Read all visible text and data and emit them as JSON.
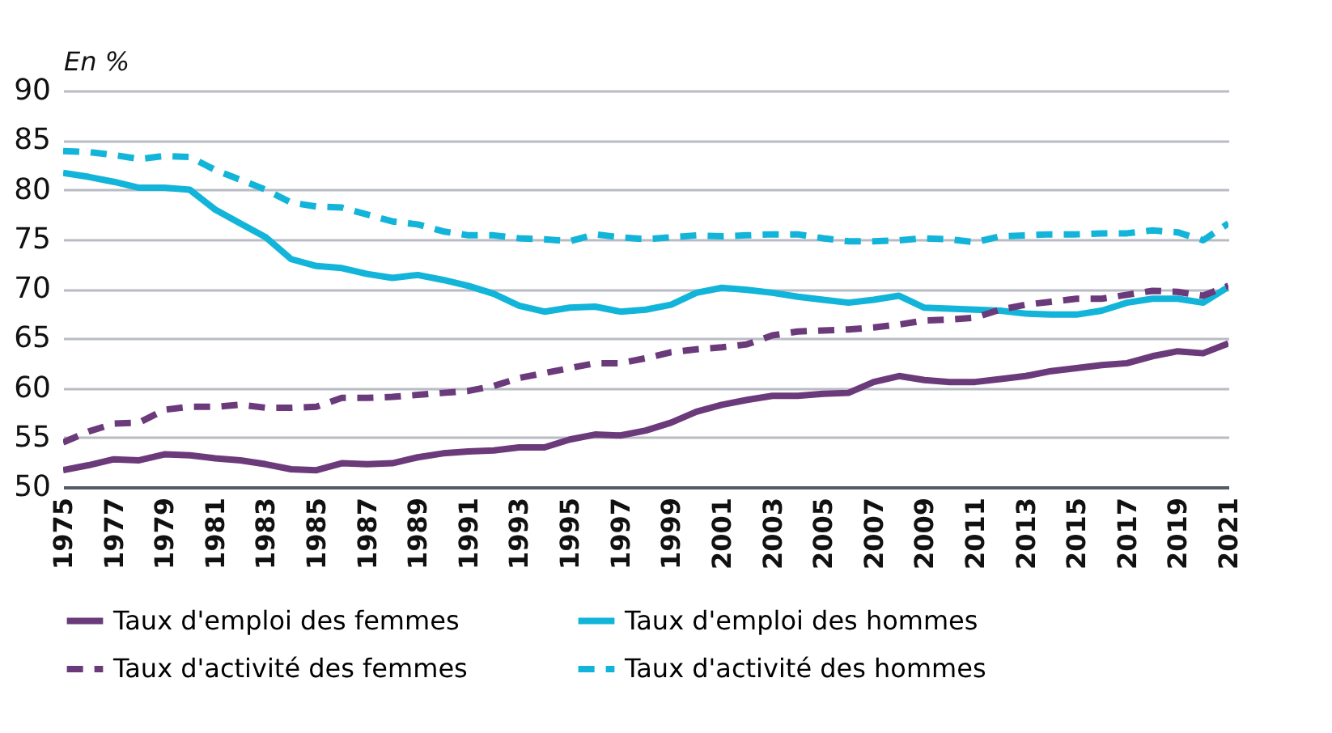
{
  "chart_data": {
    "type": "line",
    "ylabel": "En %",
    "x": [
      1975,
      1976,
      1977,
      1978,
      1979,
      1980,
      1981,
      1982,
      1983,
      1984,
      1985,
      1986,
      1987,
      1988,
      1989,
      1990,
      1991,
      1992,
      1993,
      1994,
      1995,
      1996,
      1997,
      1998,
      1999,
      2000,
      2001,
      2002,
      2003,
      2004,
      2005,
      2006,
      2007,
      2008,
      2009,
      2010,
      2011,
      2012,
      2013,
      2014,
      2015,
      2016,
      2017,
      2018,
      2019,
      2020,
      2021
    ],
    "xlim": [
      1975,
      2021
    ],
    "xticks": [
      1975,
      1977,
      1979,
      1981,
      1983,
      1985,
      1987,
      1989,
      1991,
      1993,
      1995,
      1997,
      1999,
      2001,
      2003,
      2005,
      2007,
      2009,
      2011,
      2013,
      2015,
      2017,
      2019,
      2021
    ],
    "ylim": [
      50,
      90
    ],
    "yticks": [
      50,
      55,
      60,
      65,
      70,
      75,
      80,
      85,
      90
    ],
    "grid": "y",
    "legend": "bottom",
    "marker": "none",
    "series": [
      {
        "name": "Taux d'emploi des femmes",
        "color": "#6b3a7a",
        "line_style": "solid",
        "values": [
          51.7,
          52.2,
          52.8,
          52.7,
          53.3,
          53.2,
          52.9,
          52.7,
          52.3,
          51.8,
          51.7,
          52.4,
          52.3,
          52.4,
          53.0,
          53.4,
          53.6,
          53.7,
          54.0,
          54.0,
          54.8,
          55.3,
          55.2,
          55.7,
          56.5,
          57.6,
          58.3,
          58.8,
          59.2,
          59.2,
          59.4,
          59.5,
          60.6,
          61.2,
          60.8,
          60.6,
          60.6,
          60.9,
          61.2,
          61.7,
          62.0,
          62.3,
          62.5,
          63.2,
          63.7,
          63.5,
          64.5
        ]
      },
      {
        "name": "Taux d'emploi des hommes",
        "color": "#12b5d9",
        "line_style": "solid",
        "values": [
          81.7,
          81.3,
          80.8,
          80.2,
          80.2,
          80.0,
          78.0,
          76.6,
          75.2,
          73.0,
          72.3,
          72.1,
          71.5,
          71.1,
          71.4,
          70.9,
          70.3,
          69.5,
          68.3,
          67.7,
          68.1,
          68.2,
          67.7,
          67.9,
          68.4,
          69.6,
          70.1,
          69.9,
          69.6,
          69.2,
          68.9,
          68.6,
          68.9,
          69.3,
          68.1,
          68.0,
          67.9,
          67.8,
          67.5,
          67.4,
          67.4,
          67.8,
          68.6,
          69.0,
          69.0,
          68.6,
          70.2
        ]
      },
      {
        "name": "Taux d'activité des femmes",
        "color": "#6b3a7a",
        "line_style": "dashed",
        "values": [
          54.5,
          55.6,
          56.4,
          56.5,
          57.8,
          58.1,
          58.1,
          58.3,
          58.0,
          58.0,
          58.1,
          59.0,
          59.0,
          59.1,
          59.3,
          59.5,
          59.7,
          60.2,
          61.0,
          61.5,
          62.0,
          62.5,
          62.5,
          63.0,
          63.6,
          63.9,
          64.1,
          64.4,
          65.3,
          65.7,
          65.8,
          65.9,
          66.1,
          66.4,
          66.8,
          66.9,
          67.1,
          67.9,
          68.4,
          68.7,
          69.0,
          69.0,
          69.4,
          69.8,
          69.7,
          69.3,
          70.3
        ]
      },
      {
        "name": "Taux d'activité des hommes",
        "color": "#12b5d9",
        "line_style": "dashed",
        "values": [
          83.9,
          83.8,
          83.5,
          83.1,
          83.4,
          83.3,
          82.0,
          81.0,
          80.0,
          78.7,
          78.3,
          78.2,
          77.5,
          76.8,
          76.5,
          75.8,
          75.4,
          75.4,
          75.1,
          75.0,
          74.8,
          75.5,
          75.2,
          75.0,
          75.2,
          75.4,
          75.3,
          75.4,
          75.5,
          75.5,
          75.1,
          74.8,
          74.8,
          74.9,
          75.1,
          75.0,
          74.7,
          75.3,
          75.4,
          75.5,
          75.5,
          75.6,
          75.6,
          75.9,
          75.7,
          74.9,
          76.6
        ]
      }
    ]
  }
}
